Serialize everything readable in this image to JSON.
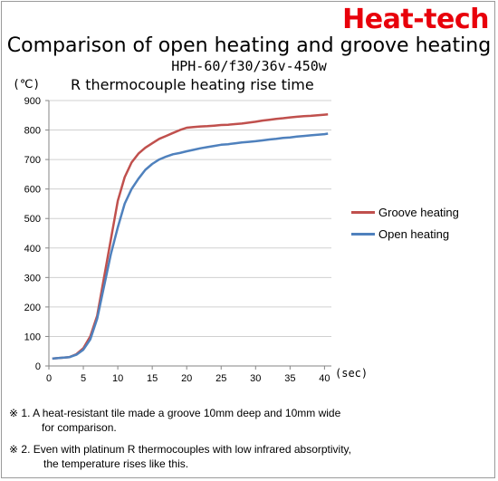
{
  "brand": "Heat-tech",
  "title": "Comparison of open heating and groove heating",
  "subtitle": "HPH-60/f30/36v-450w",
  "unit_label": "(℃)",
  "chart_title": "R thermocouple heating rise time",
  "xunit_label": "(sec)",
  "notes": [
    {
      "line1": "※ 1. A heat-resistant tile made a groove 10mm deep and 10mm wide",
      "line2": "for comparison."
    },
    {
      "line1": "※ 2. Even with platinum R thermocouples with low infrared absorptivity,",
      "line2": "the temperature rises like this."
    }
  ],
  "colors": {
    "groove": "#c0504d",
    "open": "#4f81bd",
    "grid": "#d0d0d0",
    "axis": "#868686"
  },
  "chart_data": {
    "type": "line",
    "title": "R thermocouple heating rise time",
    "xlabel": "(sec)",
    "ylabel": "(℃)",
    "xlim": [
      0,
      41
    ],
    "ylim": [
      0,
      900
    ],
    "xticks": [
      0,
      5,
      10,
      15,
      20,
      25,
      30,
      35,
      40
    ],
    "yticks": [
      0,
      100,
      200,
      300,
      400,
      500,
      600,
      700,
      800,
      900
    ],
    "grid": true,
    "legend": "right",
    "series": [
      {
        "name": "Groove heating",
        "color": "#c0504d",
        "x": [
          0.5,
          1,
          2,
          3,
          4,
          5,
          6,
          7,
          8,
          9,
          10,
          11,
          12,
          13,
          14,
          15,
          16,
          17,
          18,
          19,
          20,
          21,
          22,
          23,
          24,
          25,
          26,
          27,
          28,
          29,
          30,
          31,
          32,
          33,
          34,
          35,
          36,
          37,
          38,
          39,
          40,
          40.5
        ],
        "values": [
          25,
          26,
          28,
          30,
          40,
          60,
          100,
          170,
          300,
          430,
          560,
          640,
          690,
          720,
          740,
          755,
          770,
          780,
          790,
          800,
          808,
          810,
          812,
          813,
          815,
          817,
          818,
          820,
          822,
          825,
          828,
          832,
          835,
          838,
          840,
          843,
          845,
          847,
          848,
          850,
          852,
          853
        ]
      },
      {
        "name": "Open heating",
        "color": "#4f81bd",
        "x": [
          0.5,
          1,
          2,
          3,
          4,
          5,
          6,
          7,
          8,
          9,
          10,
          11,
          12,
          13,
          14,
          15,
          16,
          17,
          18,
          19,
          20,
          21,
          22,
          23,
          24,
          25,
          26,
          27,
          28,
          29,
          30,
          31,
          32,
          33,
          34,
          35,
          36,
          37,
          38,
          39,
          40,
          40.5
        ],
        "values": [
          25,
          26,
          28,
          30,
          38,
          55,
          90,
          160,
          270,
          380,
          470,
          550,
          600,
          635,
          665,
          685,
          700,
          710,
          718,
          722,
          728,
          733,
          738,
          742,
          746,
          750,
          752,
          755,
          758,
          760,
          762,
          765,
          768,
          770,
          773,
          775,
          778,
          780,
          782,
          784,
          786,
          788
        ]
      }
    ]
  }
}
